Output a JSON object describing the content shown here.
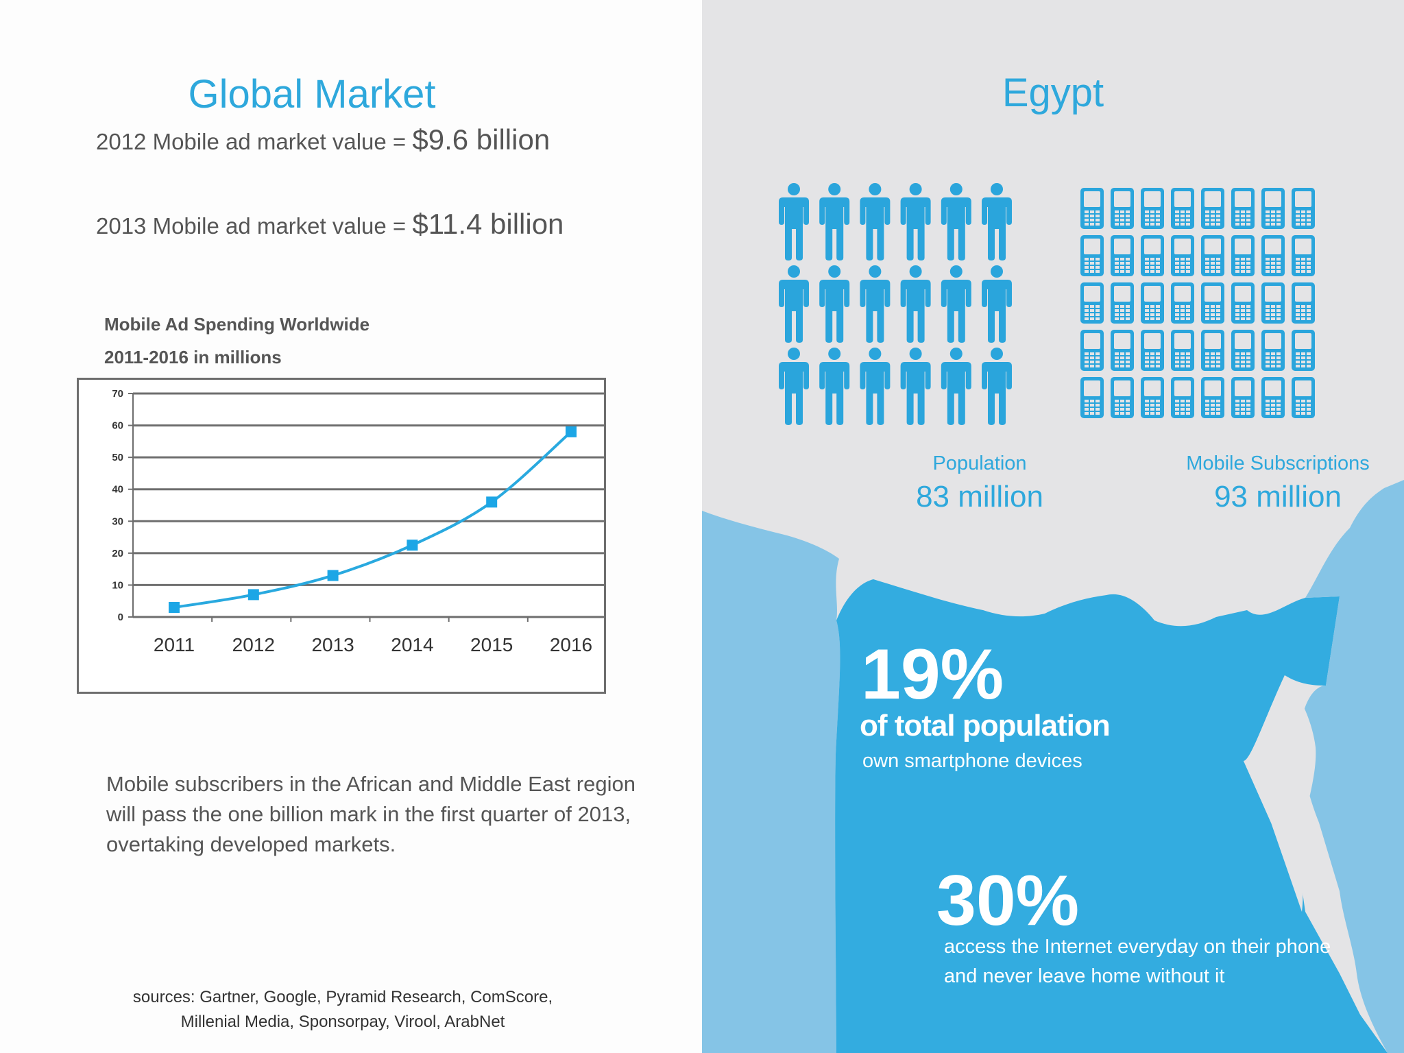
{
  "global_market": {
    "title": "Global Market",
    "line1_label": "2012 Mobile ad market value =",
    "line1_value": "$9.6 billion",
    "line2_label": "2013 Mobile ad market value =",
    "line2_value": "$11.4 billion",
    "note": "Mobile subscribers in the African and Middle East region will pass the one billion mark in the first quarter of 2013, overtaking developed markets.",
    "sources_line1": "sources: Gartner, Google, Pyramid Research, ComScore,",
    "sources_line2": "Millenial Media, Sponsorpay, Virool, ArabNet"
  },
  "chart_data": {
    "type": "line",
    "title": "Mobile Ad Spending Worldwide",
    "subtitle": "2011-2016 in millions",
    "categories": [
      "2011",
      "2012",
      "2013",
      "2014",
      "2015",
      "2016"
    ],
    "series": [
      {
        "values": [
          3,
          7,
          13,
          22.5,
          36,
          58
        ]
      }
    ],
    "ylim": [
      0,
      70
    ],
    "yticks": [
      0,
      10,
      20,
      30,
      40,
      50,
      60,
      70
    ],
    "grid": true,
    "colors": {
      "line": "#29a9df",
      "marker": "#1ca6e6",
      "grid": "#6e6e6e"
    }
  },
  "egypt": {
    "title": "Egypt",
    "population_label": "Population",
    "population_value": "83 million",
    "subscriptions_label": "Mobile Subscriptions",
    "subscriptions_value": "93 million",
    "stat1_pct": "19%",
    "stat1_line1": "of total population",
    "stat1_line2": "own smartphone devices",
    "stat2_pct": "30%",
    "stat2_text": "access the Internet everyday on their phone and never leave home without it",
    "people_icons": 18,
    "phone_icons": 40,
    "colors": {
      "accent": "#2ea8dc",
      "icon": "#2aa5dc",
      "map_main": "#33ace0",
      "map_light": "#85c4e6",
      "background": "#e4e4e6"
    }
  }
}
